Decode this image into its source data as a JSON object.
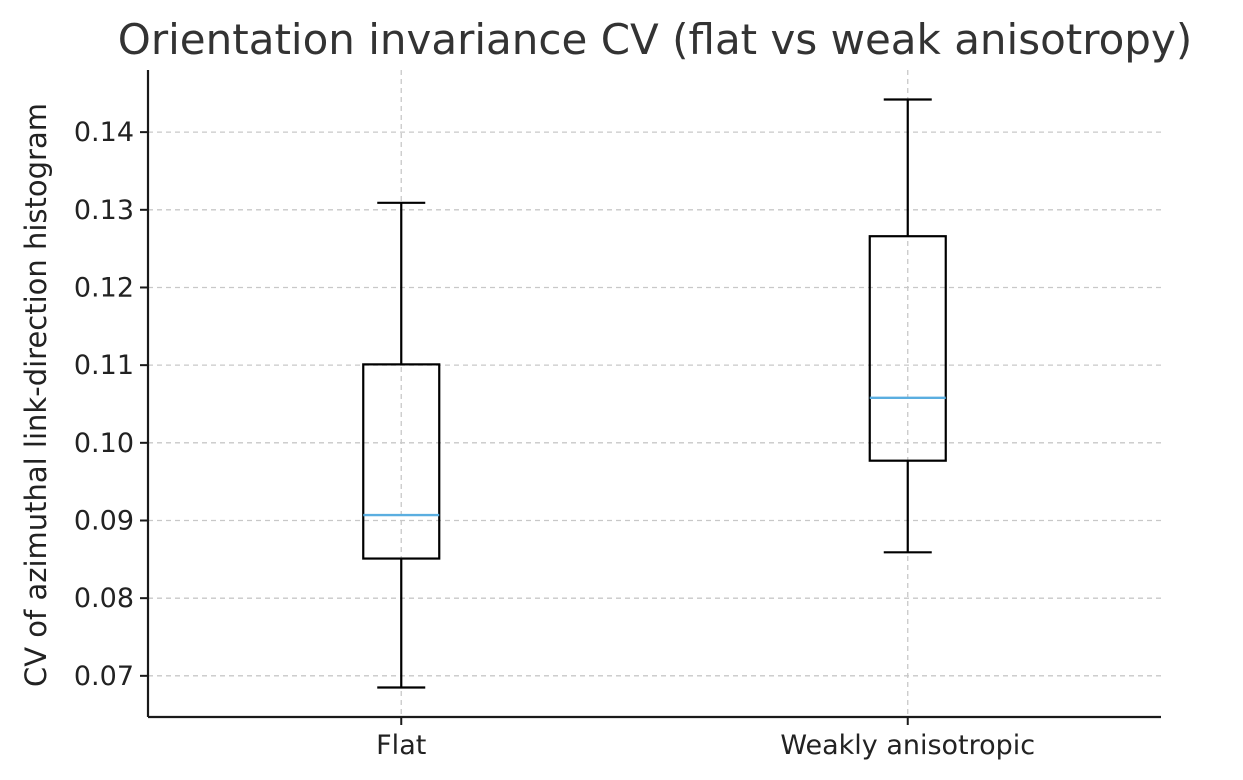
{
  "chart_data": {
    "type": "box",
    "title": "Orientation invariance CV (flat vs weak anisotropy)",
    "xlabel": "",
    "ylabel": "CV of azimuthal link-direction histogram",
    "categories": [
      "Flat",
      "Weakly anisotropic"
    ],
    "boxes": [
      {
        "name": "Flat",
        "whisker_low": 0.0685,
        "q1": 0.0851,
        "median": 0.0907,
        "q3": 0.1101,
        "whisker_high": 0.1309
      },
      {
        "name": "Weakly anisotropic",
        "whisker_low": 0.0859,
        "q1": 0.0977,
        "median": 0.1058,
        "q3": 0.1266,
        "whisker_high": 0.1442
      }
    ],
    "ylim": [
      0.0647,
      0.148
    ],
    "yticks": [
      0.07,
      0.08,
      0.09,
      0.1,
      0.11,
      0.12,
      0.13,
      0.14
    ],
    "ytick_labels": [
      "0.07",
      "0.08",
      "0.09",
      "0.10",
      "0.11",
      "0.12",
      "0.13",
      "0.14"
    ],
    "grid": true,
    "colors": {
      "median": "#5aaee0",
      "box": "#000000",
      "grid": "#c8c8c8",
      "axis": "#1a1a1a"
    }
  }
}
